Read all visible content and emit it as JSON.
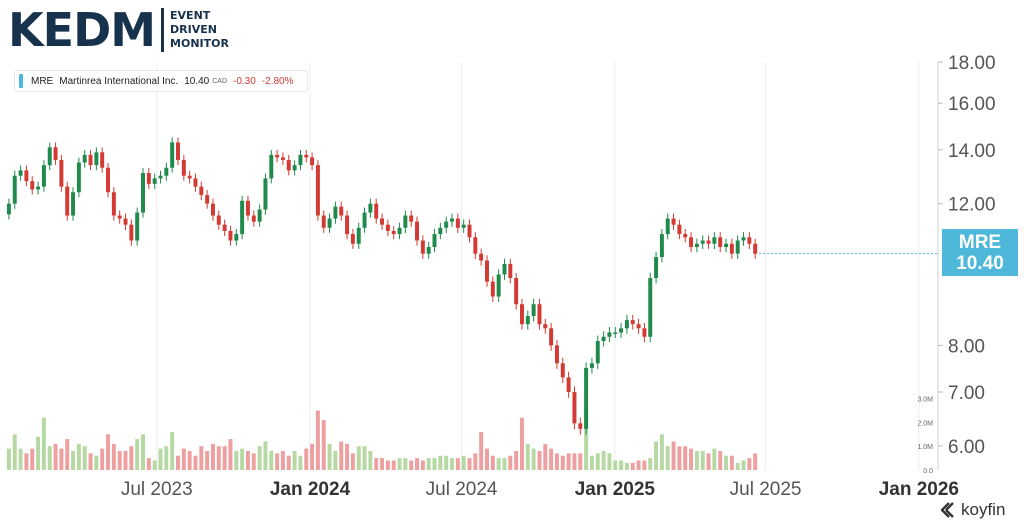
{
  "brand": {
    "main": "KEDM",
    "sub": [
      "EVENT",
      "DRIVEN",
      "MONITOR"
    ]
  },
  "legend": {
    "ticker": "MRE",
    "name": "Martinrea International Inc.",
    "price": "10.40",
    "currency": "CAD",
    "change": "-0.30",
    "change_pct": "-2.80%"
  },
  "price_tag": {
    "ticker": "MRE",
    "price": "10.40"
  },
  "watermark": "koyfin",
  "colors": {
    "up": "#1f8a4c",
    "down": "#d23a33",
    "volume_up": "#b6d9a4",
    "volume_down": "#eea0a0",
    "accent": "#4db8d9"
  },
  "chart_data": {
    "type": "candlestick",
    "title": "",
    "y_scale": "log",
    "ylim": [
      5.6,
      18.0
    ],
    "y_ticks": [
      6.0,
      7.0,
      8.0,
      12.0,
      14.0,
      16.0,
      18.0
    ],
    "y_tick_labels": [
      "6.00",
      "7.00",
      "8.00",
      "12.00",
      "14.00",
      "16.00",
      "18.00"
    ],
    "x_range": [
      "2023-01-01",
      "2026-01-24"
    ],
    "x_ticks": [
      {
        "date": "2023-07-01",
        "label": "Jul 2023",
        "bold": false
      },
      {
        "date": "2024-01-01",
        "label": "Jan 2024",
        "bold": true
      },
      {
        "date": "2024-07-01",
        "label": "Jul 2024",
        "bold": false
      },
      {
        "date": "2025-01-01",
        "label": "Jan 2025",
        "bold": true
      },
      {
        "date": "2025-07-01",
        "label": "Jul 2025",
        "bold": false
      },
      {
        "date": "2026-01-01",
        "label": "Jan 2026",
        "bold": true
      }
    ],
    "volume_ticks": [
      {
        "value": 1.0,
        "label": "1.0M"
      },
      {
        "value": 2.0,
        "label": "2.0M"
      },
      {
        "value": 3.0,
        "label": "3.0M"
      },
      {
        "value": 0.0,
        "label": "0.0"
      }
    ],
    "volume_max": 3.7,
    "grid": "vertical",
    "candle_interval": "weekly",
    "start_date": "2023-01-01",
    "closes": [
      12.0,
      13.0,
      13.2,
      12.8,
      12.5,
      12.6,
      13.4,
      14.1,
      13.6,
      12.6,
      11.6,
      12.4,
      13.5,
      13.8,
      13.4,
      13.9,
      13.3,
      12.4,
      11.6,
      11.5,
      11.3,
      10.8,
      11.7,
      13.1,
      12.7,
      12.9,
      13.0,
      13.3,
      14.3,
      13.6,
      13.0,
      12.9,
      12.6,
      12.3,
      12.0,
      11.6,
      11.3,
      11.1,
      10.8,
      11.0,
      12.1,
      11.6,
      11.4,
      11.8,
      12.9,
      13.8,
      13.7,
      13.6,
      13.2,
      13.4,
      13.8,
      13.7,
      13.4,
      11.6,
      11.2,
      11.5,
      11.9,
      11.6,
      11.0,
      10.7,
      11.2,
      11.7,
      12.0,
      11.5,
      11.3,
      11.1,
      11.0,
      11.2,
      11.6,
      11.4,
      10.8,
      10.4,
      10.6,
      11.0,
      11.2,
      11.4,
      11.5,
      11.2,
      11.3,
      10.9,
      10.4,
      10.2,
      9.6,
      9.2,
      9.8,
      10.1,
      9.7,
      9.0,
      8.5,
      8.7,
      9.0,
      8.5,
      8.4,
      8.0,
      7.6,
      7.3,
      7.0,
      6.4,
      6.3,
      7.5,
      7.6,
      8.1,
      8.2,
      8.3,
      8.3,
      8.4,
      8.6,
      8.5,
      8.4,
      8.2,
      9.7,
      10.3,
      11.0,
      11.5,
      11.3,
      11.0,
      10.9,
      10.6,
      10.7,
      10.8,
      10.7,
      10.9,
      10.6,
      10.7,
      10.4,
      10.8,
      10.9,
      10.7,
      10.4
    ],
    "volumes": [
      0.9,
      1.5,
      0.9,
      0.7,
      0.9,
      1.4,
      2.2,
      1.0,
      1.1,
      0.9,
      1.3,
      0.8,
      1.1,
      1.0,
      0.7,
      0.6,
      0.9,
      1.5,
      1.1,
      0.8,
      0.8,
      1.0,
      1.3,
      1.5,
      0.5,
      0.4,
      0.9,
      1.0,
      1.6,
      0.6,
      0.9,
      0.8,
      0.6,
      1.0,
      0.8,
      1.1,
      1.0,
      1.0,
      1.3,
      0.8,
      0.9,
      0.8,
      0.7,
      1.0,
      1.2,
      0.8,
      0.7,
      0.8,
      0.6,
      0.8,
      0.6,
      0.9,
      1.1,
      2.5,
      2.1,
      1.1,
      0.8,
      1.2,
      1.1,
      0.7,
      1.0,
      1.0,
      0.8,
      0.5,
      0.5,
      0.4,
      0.4,
      0.5,
      0.5,
      0.4,
      0.5,
      0.4,
      0.5,
      0.5,
      0.6,
      0.6,
      0.5,
      0.5,
      0.6,
      0.5,
      0.7,
      1.6,
      0.9,
      0.6,
      0.5,
      0.5,
      0.6,
      0.8,
      2.2,
      1.1,
      0.9,
      0.8,
      1.1,
      0.9,
      0.7,
      0.6,
      0.7,
      0.7,
      0.7,
      2.5,
      0.6,
      0.7,
      0.8,
      0.7,
      0.4,
      0.4,
      0.3,
      0.3,
      0.4,
      0.4,
      0.5,
      1.2,
      1.5,
      1.0,
      1.2,
      1.0,
      1.0,
      0.9,
      0.8,
      0.8,
      0.7,
      0.9,
      0.8,
      0.6,
      0.6,
      0.3,
      0.4,
      0.5,
      0.7
    ]
  }
}
